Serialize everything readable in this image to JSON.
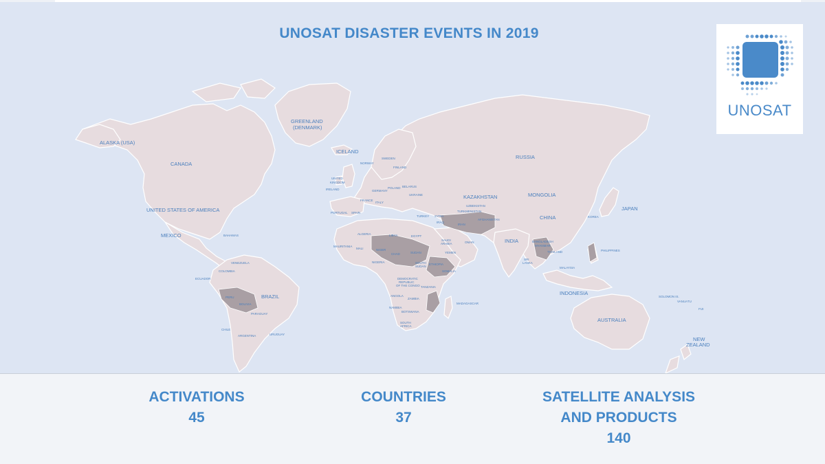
{
  "title": "UNOSAT DISASTER EVENTS IN 2019",
  "logo": {
    "text": "UNOSAT",
    "icon": "dotted-square-logo-icon"
  },
  "colors": {
    "accent": "#4488c9",
    "map_background": "#dde5f3",
    "land": "#e7dcdf",
    "affected": "#a99fa4"
  },
  "map": {
    "labels": {
      "alaska": "ALASKA (USA)",
      "canada": "CANADA",
      "usa": "UNITED STATES OF AMERICA",
      "mexico": "MEXICO",
      "bahamas": "BAHAMAS",
      "greenland": "GREENLAND",
      "greenland2": "(DENMARK)",
      "iceland": "ICELAND",
      "norway": "NORWAY",
      "sweden": "SWEDEN",
      "finland": "FINLAND",
      "uk": "UNITED",
      "uk2": "KINGDOM",
      "ireland": "IRELAND",
      "portugal": "PORTUGAL",
      "spain": "SPAIN",
      "france": "FRANCE",
      "germany": "GERMANY",
      "poland": "POLAND",
      "belarus": "BELARUS",
      "ukraine": "UKRAINE",
      "italy": "ITALY",
      "turkey": "TURKEY",
      "russia": "RUSSIA",
      "kazakhstan": "KAZAKHSTAN",
      "uzbekistan": "UZBEKISTAN",
      "turkmenistan": "TURKMENISTAN",
      "mongolia": "MONGOLIA",
      "china": "CHINA",
      "japan": "JAPAN",
      "iraq": "IRAQ",
      "iran": "IRAN",
      "afghanistan": "AFGHANISTAN",
      "india": "INDIA",
      "sri_lanka": "SRI",
      "sri_lanka2": "LANKA",
      "philippines": "PHILIPPINES",
      "malaysia": "MALAYSIA",
      "indonesia": "INDONESIA",
      "australia": "AUSTRALIA",
      "new_zealand": "NEW",
      "new_zealand2": "ZEALAND",
      "algeria": "ALGERIA",
      "libya": "LIBYA",
      "egypt": "EGYPT",
      "saudi": "SAUDI",
      "saudi2": "ARABIA",
      "oman": "OMAN",
      "yemen": "YEMEN",
      "mauritania": "MAURITANIA",
      "mali": "MALI",
      "niger": "NIGER",
      "chad": "CHAD",
      "sudan": "SUDAN",
      "south_sudan": "SOUTH",
      "south_sudan2": "SUDAN",
      "ethiopia": "ETHIOPIA",
      "somalia": "SOMALIA",
      "nigeria": "NIGERIA",
      "drc": "DEMOCRATIC",
      "drc2": "REPUBLIC",
      "drc3": "OF THE CONGO",
      "tanzania": "TANZANIA",
      "angola": "ANGOLA",
      "zambia": "ZAMBIA",
      "namibia": "NAMIBIA",
      "botswana": "BOTSWANA",
      "south_africa": "SOUTH",
      "south_africa2": "AFRICA",
      "madagascar": "MADAGASCAR",
      "venezuela": "VENEZUELA",
      "colombia": "COLOMBIA",
      "ecuador": "ECUADOR",
      "peru": "PERU",
      "bolivia": "BOLIVIA",
      "brazil": "BRAZIL",
      "paraguay": "PARAGUAY",
      "chile": "CHILE",
      "argentina": "ARGENTINA",
      "uruguay": "URUGUAY",
      "solomon": "SOLOMON IS.",
      "fiji": "FIJI",
      "vanuatu": "VANUATU",
      "philippines_s": "BANGLADESH",
      "myanmar": "MYANMAR",
      "thailand": "THAILAND",
      "syria": "SYRIA",
      "korea": "KOREA"
    }
  },
  "stats": [
    {
      "label": "ACTIVATIONS",
      "value": "45"
    },
    {
      "label": "COUNTRIES",
      "value": "37"
    },
    {
      "label_line1": "SATELLITE ANALYSIS",
      "label_line2": "AND PRODUCTS",
      "value": "140"
    }
  ]
}
